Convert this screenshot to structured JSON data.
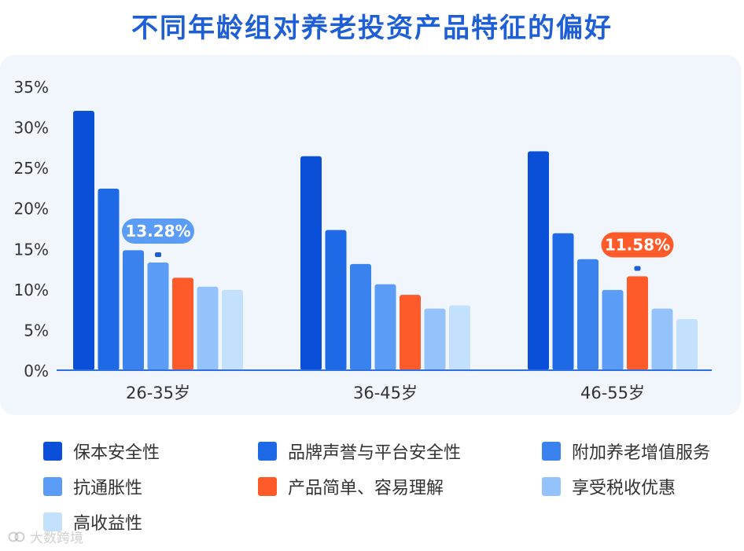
{
  "chart_data": {
    "type": "bar",
    "title": "不同年龄组对养老投资产品特征的偏好",
    "categories": [
      "26-35岁",
      "36-45岁",
      "46-55岁"
    ],
    "series": [
      {
        "name": "保本安全性",
        "color": "#0a4fd8",
        "values": [
          32.0,
          26.4,
          27.0
        ]
      },
      {
        "name": "品牌声誉与平台安全性",
        "color": "#1e6ae6",
        "values": [
          22.4,
          17.3,
          16.9
        ]
      },
      {
        "name": "附加养老增值服务",
        "color": "#3a82ee",
        "values": [
          14.8,
          13.1,
          13.7
        ]
      },
      {
        "name": "抗通胀性",
        "color": "#5b9cf6",
        "values": [
          13.28,
          10.6,
          9.9
        ]
      },
      {
        "name": "产品简单、容易理解",
        "color": "#fe5a2a",
        "values": [
          11.4,
          9.3,
          11.58
        ]
      },
      {
        "name": "享受税收优惠",
        "color": "#94c2fb",
        "values": [
          10.3,
          7.6,
          7.6
        ]
      },
      {
        "name": "高收益性",
        "color": "#c3e0fd",
        "values": [
          9.9,
          8.0,
          6.3
        ]
      }
    ],
    "ylim": [
      0,
      35
    ],
    "yticks": [
      "0%",
      "5%",
      "10%",
      "15%",
      "20%",
      "25%",
      "30%",
      "35%"
    ],
    "ytick_values": [
      0,
      5,
      10,
      15,
      20,
      25,
      30,
      35
    ],
    "annotations": [
      {
        "text": "13.28%",
        "category_index": 0,
        "series_index": 3,
        "color": "#5b9cf6"
      },
      {
        "text": "11.58%",
        "category_index": 2,
        "series_index": 4,
        "color": "#fe5a2a"
      }
    ],
    "grid": false,
    "legend_position": "bottom"
  },
  "watermark": {
    "text": "大数跨境"
  }
}
